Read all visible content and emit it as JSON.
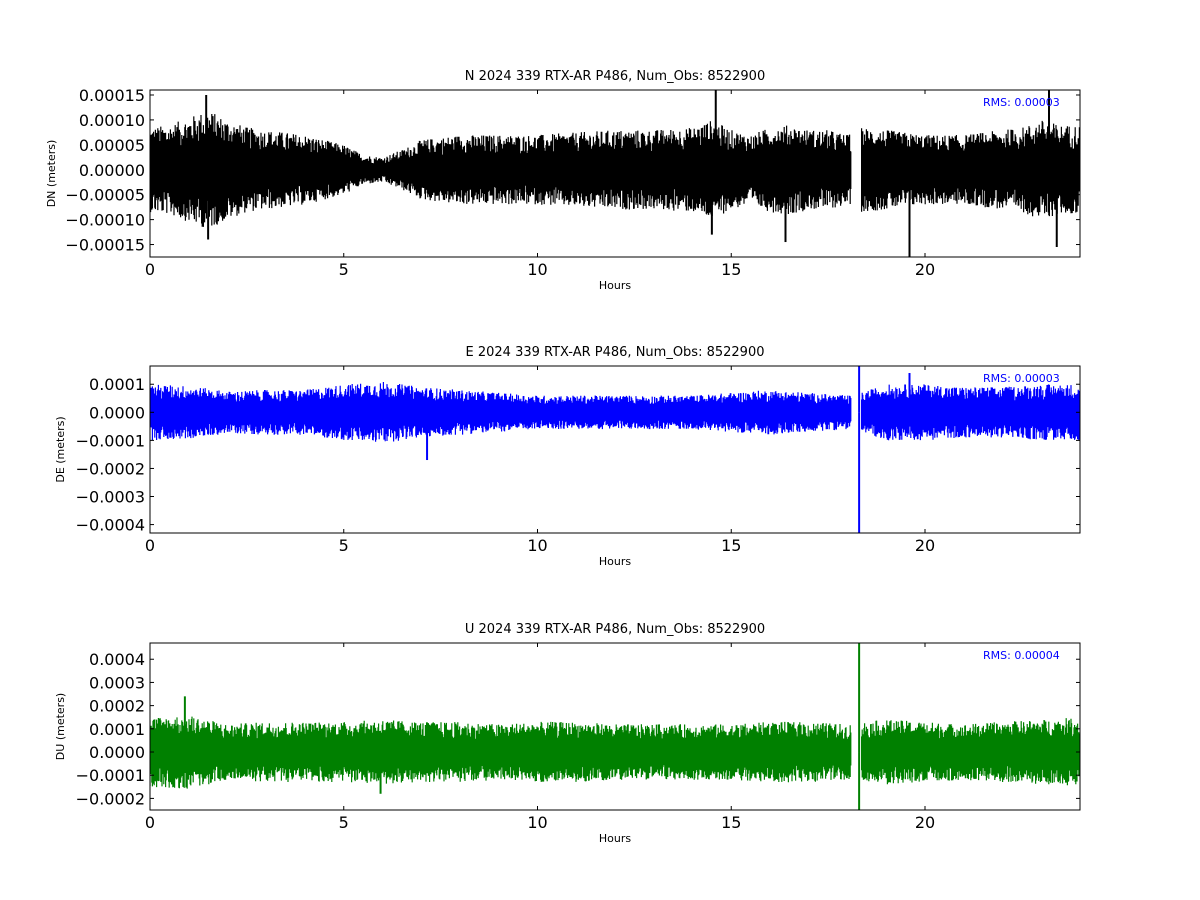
{
  "chart_data": [
    {
      "type": "line",
      "title": "N 2024 339 RTX-AR  P486, Num_Obs: 8522900",
      "xlabel": "Hours",
      "ylabel": "DN (meters)",
      "xlim": [
        0,
        24
      ],
      "ylim": [
        -0.000175,
        0.00016
      ],
      "xticks": [
        0,
        5,
        10,
        15,
        20
      ],
      "yticks": [
        -0.00015,
        -0.0001,
        -5e-05,
        0.0,
        5e-05,
        0.0001,
        0.00015
      ],
      "ytick_labels": [
        "−0.00015",
        "−0.00010",
        "−0.00005",
        "0.00000",
        "0.00005",
        "0.00010",
        "0.00015"
      ],
      "annotation": "RMS:  0.00003",
      "annotation_color": "#0000ff",
      "series_color": "#000000",
      "gap": [
        18.1,
        18.35
      ],
      "envelope_x": [
        0,
        0.5,
        1,
        1.5,
        2,
        2.5,
        3,
        3.5,
        4,
        4.5,
        5,
        5.5,
        6,
        6.5,
        7,
        8,
        9,
        10,
        11,
        12,
        13,
        14,
        14.5,
        15,
        15.5,
        16,
        16.5,
        17,
        17.5,
        18.0,
        18.35,
        19,
        20,
        21,
        22,
        22.5,
        23,
        23.5,
        24
      ],
      "envelope_amp": [
        8.5e-05,
        9e-05,
        0.000105,
        0.00012,
        0.0001,
        8.5e-05,
        8e-05,
        7.5e-05,
        7e-05,
        6e-05,
        5e-05,
        3e-05,
        2.5e-05,
        4e-05,
        6e-05,
        7e-05,
        7e-05,
        7e-05,
        7.5e-05,
        8e-05,
        8e-05,
        8.5e-05,
        0.0001,
        8e-05,
        7e-05,
        8.5e-05,
        9e-05,
        8e-05,
        8e-05,
        7e-05,
        8.5e-05,
        8e-05,
        7e-05,
        7e-05,
        8e-05,
        8.5e-05,
        0.0001,
        9e-05,
        9e-05
      ],
      "spikes": [
        {
          "x": 1.45,
          "y": 0.00015
        },
        {
          "x": 1.5,
          "y": -0.00014
        },
        {
          "x": 14.6,
          "y": 0.00016
        },
        {
          "x": 14.5,
          "y": -0.00013
        },
        {
          "x": 16.4,
          "y": -0.000145
        },
        {
          "x": 19.6,
          "y": -0.000175
        },
        {
          "x": 23.2,
          "y": 0.00016
        },
        {
          "x": 23.4,
          "y": -0.000155
        }
      ]
    },
    {
      "type": "line",
      "title": "E 2024 339 RTX-AR  P486, Num_Obs: 8522900",
      "xlabel": "Hours",
      "ylabel": "DE (meters)",
      "xlim": [
        0,
        24
      ],
      "ylim": [
        -0.00043,
        0.000165
      ],
      "xticks": [
        0,
        5,
        10,
        15,
        20
      ],
      "yticks": [
        -0.0004,
        -0.0003,
        -0.0002,
        -0.0001,
        0.0,
        0.0001
      ],
      "ytick_labels": [
        "−0.0004",
        "−0.0003",
        "−0.0002",
        "−0.0001",
        "0.0000",
        "0.0001"
      ],
      "annotation": "RMS:  0.00003",
      "annotation_color": "#0000ff",
      "series_color": "#0000ff",
      "gap": [
        18.1,
        18.35
      ],
      "envelope_x": [
        0,
        1,
        2,
        3,
        4,
        5,
        6,
        6.5,
        7,
        8,
        9,
        10,
        11,
        12,
        13,
        14,
        15,
        16,
        17,
        18.0,
        18.35,
        19,
        20,
        21,
        22,
        23,
        24
      ],
      "envelope_amp": [
        0.0001,
        9.5e-05,
        7.5e-05,
        8e-05,
        8e-05,
        0.0001,
        0.00011,
        0.0001,
        9e-05,
        8e-05,
        7e-05,
        6e-05,
        6e-05,
        6e-05,
        6e-05,
        6e-05,
        7e-05,
        8e-05,
        7e-05,
        6e-05,
        7e-05,
        0.0001,
        0.0001,
        9e-05,
        9e-05,
        0.0001,
        0.0001
      ],
      "spikes": [
        {
          "x": 7.15,
          "y": -0.00017
        },
        {
          "x": 18.3,
          "y": 0.000165
        },
        {
          "x": 18.3,
          "y": -0.00043
        },
        {
          "x": 19.6,
          "y": 0.00014
        }
      ]
    },
    {
      "type": "line",
      "title": "U 2024 339 RTX-AR  P486, Num_Obs: 8522900",
      "xlabel": "Hours",
      "ylabel": "DU (meters)",
      "xlim": [
        0,
        24
      ],
      "ylim": [
        -0.00025,
        0.00047
      ],
      "xticks": [
        0,
        5,
        10,
        15,
        20
      ],
      "yticks": [
        -0.0002,
        -0.0001,
        0.0,
        0.0001,
        0.0002,
        0.0003,
        0.0004
      ],
      "ytick_labels": [
        "−0.0002",
        "−0.0001",
        "0.0000",
        "0.0001",
        "0.0002",
        "0.0003",
        "0.0004"
      ],
      "annotation": "RMS:  0.00004",
      "annotation_color": "#0000ff",
      "series_color": "#008000",
      "gap": [
        18.1,
        18.35
      ],
      "envelope_x": [
        0,
        1,
        2,
        3,
        4,
        5,
        6,
        7,
        8,
        9,
        10,
        11,
        12,
        13,
        14,
        15,
        16,
        17,
        18.0,
        18.35,
        19,
        20,
        21,
        22,
        23,
        24
      ],
      "envelope_amp": [
        0.00015,
        0.00016,
        0.00012,
        0.00013,
        0.00013,
        0.00013,
        0.00014,
        0.00013,
        0.00013,
        0.00012,
        0.00013,
        0.00013,
        0.00012,
        0.00012,
        0.00012,
        0.00012,
        0.00013,
        0.00013,
        0.00012,
        0.00013,
        0.00014,
        0.00013,
        0.00012,
        0.00013,
        0.00014,
        0.00015
      ],
      "spikes": [
        {
          "x": 0.9,
          "y": 0.00024
        },
        {
          "x": 5.95,
          "y": -0.00018
        },
        {
          "x": 18.3,
          "y": 0.00047
        },
        {
          "x": 18.3,
          "y": -0.00025
        }
      ]
    }
  ]
}
